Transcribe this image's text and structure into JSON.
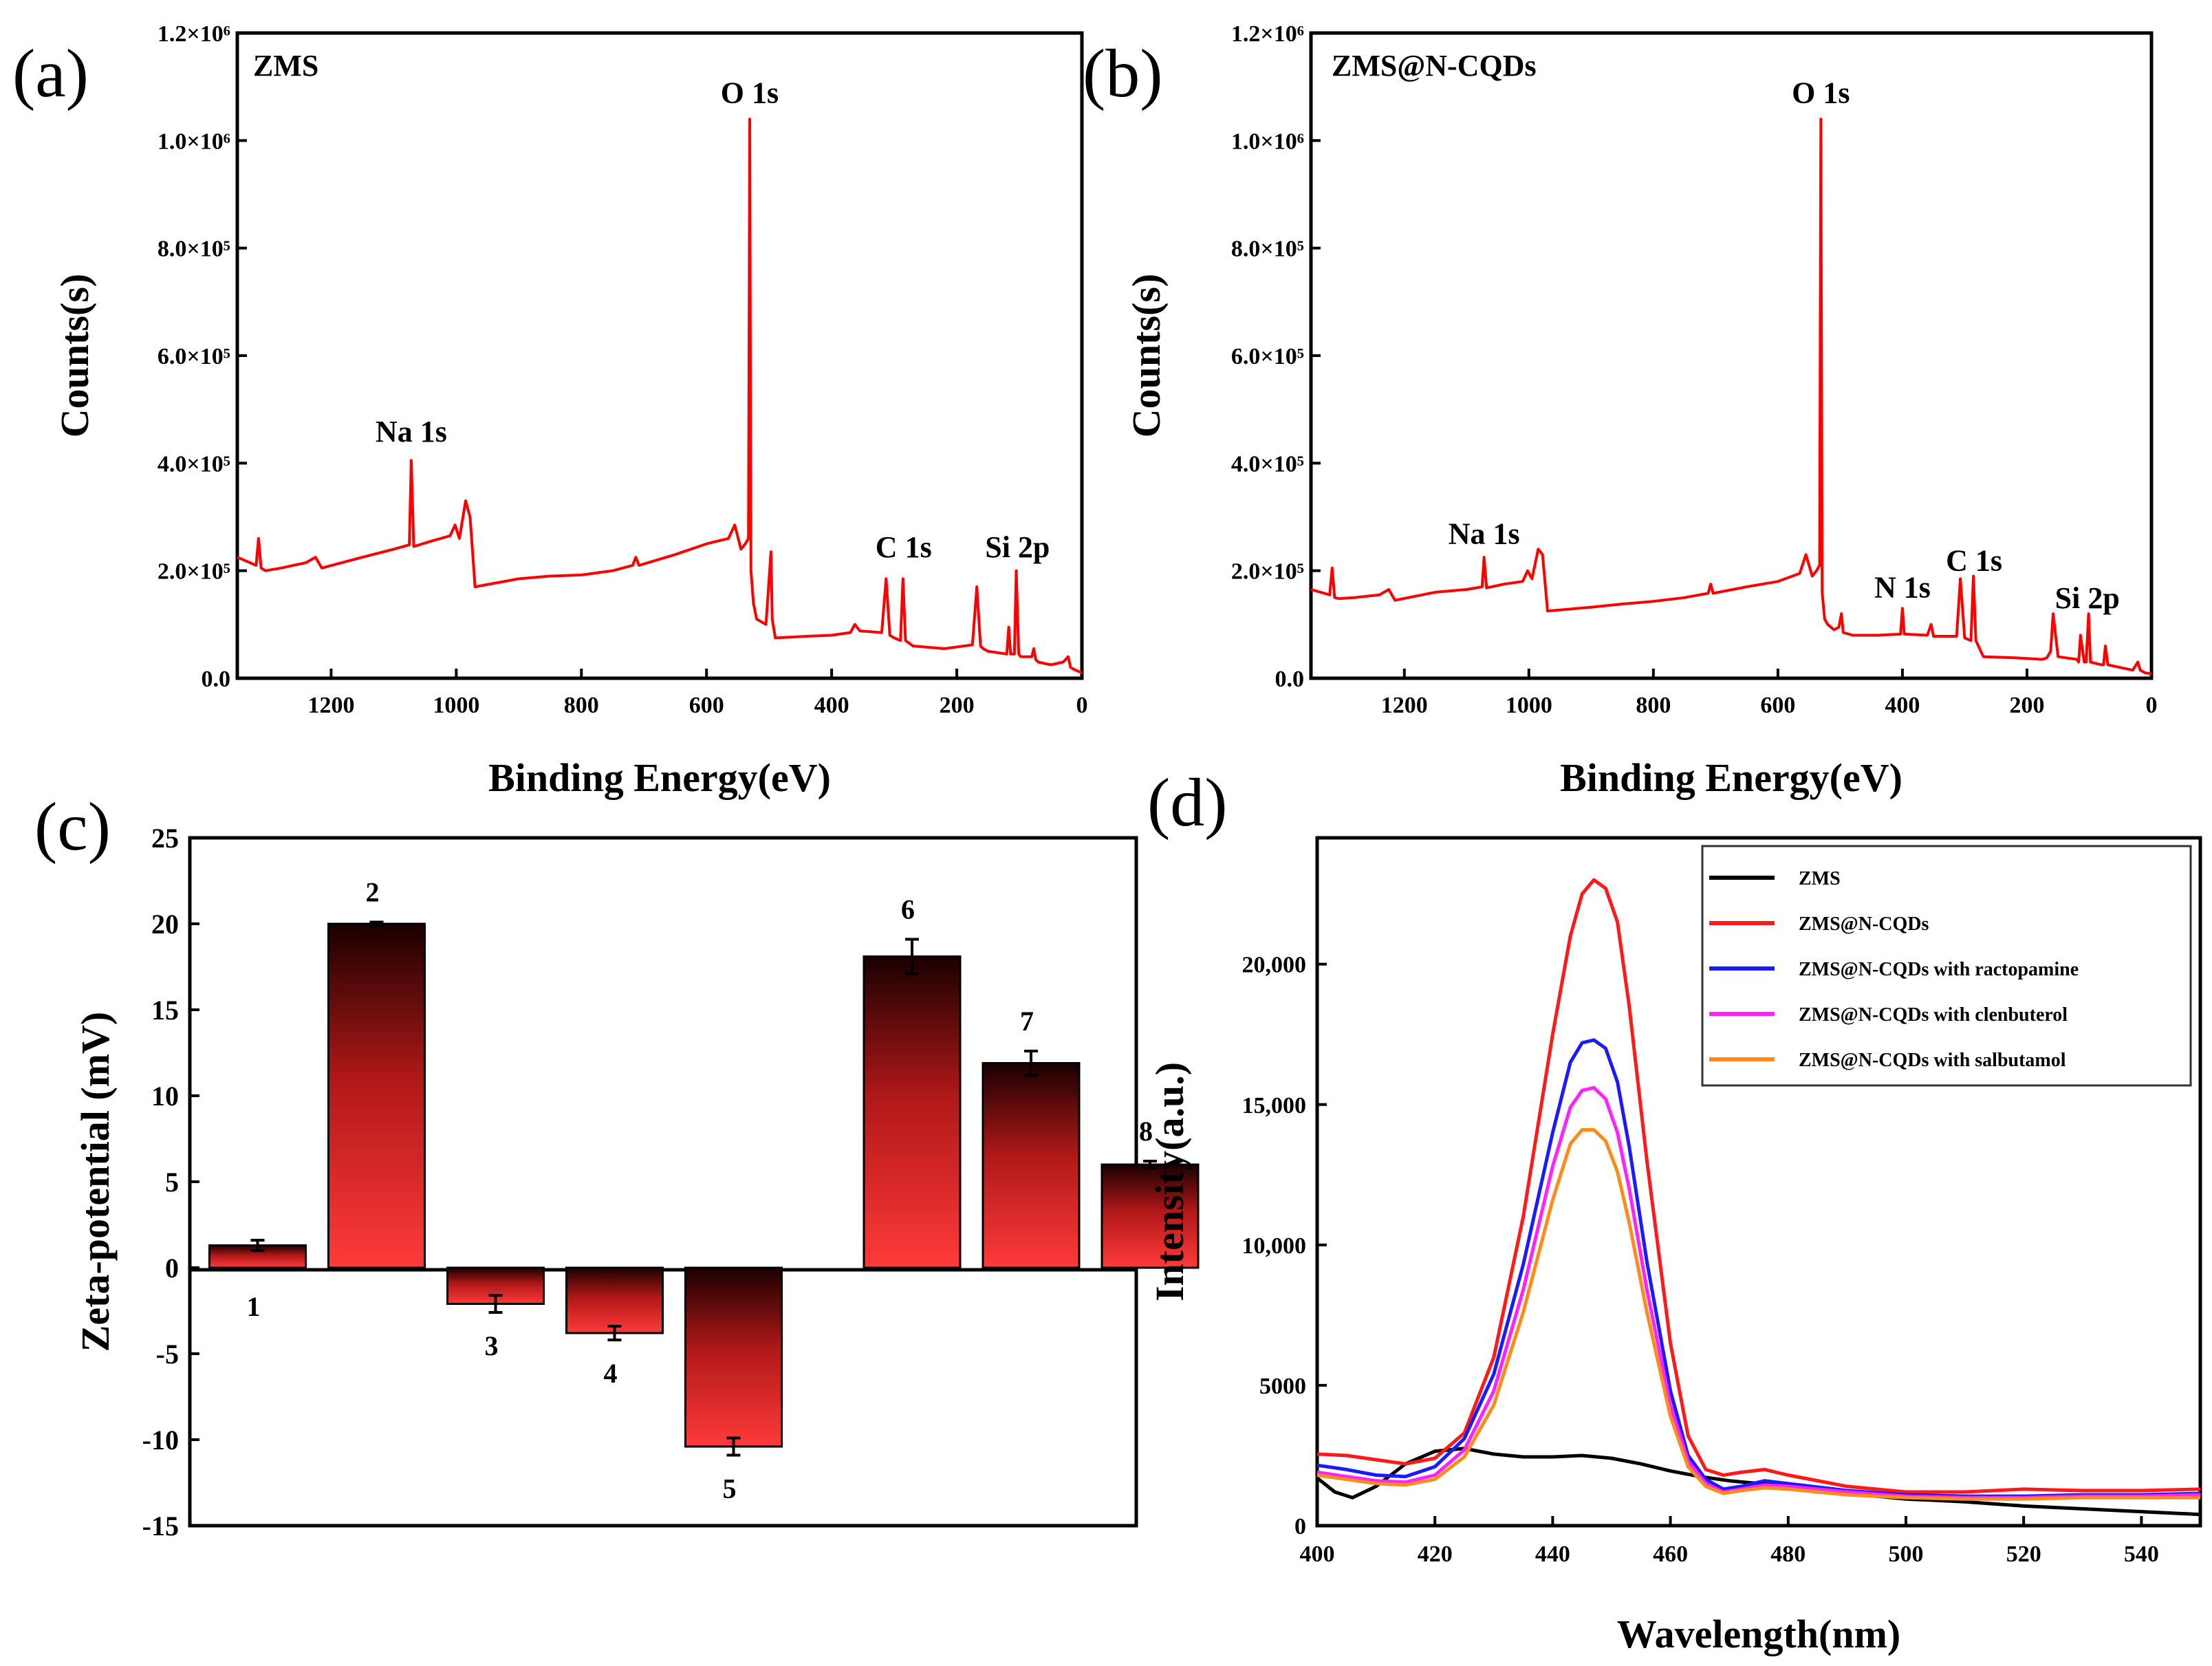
{
  "panels": {
    "a": "(a)",
    "b": "(b)",
    "c": "(c)",
    "d": "(d)"
  },
  "colors": {
    "xps_line": "#ff0000",
    "bar_top": "#1a0000",
    "bar_bottom": "#ff3a3a",
    "zms": "#000000",
    "zms_ncqds": "#ff1a1a",
    "ractopamine": "#1a1aff",
    "clenbuterol": "#ff22ff",
    "salbutamol": "#ff8c1a"
  },
  "chart_data": [
    {
      "id": "a",
      "type": "line",
      "sample_label": "ZMS",
      "xlabel": "Binding Energy(eV)",
      "ylabel": "Counts(s)",
      "xlim": [
        1350,
        0
      ],
      "ylim": [
        0,
        1200000
      ],
      "x_ticks": [
        "1200",
        "1000",
        "800",
        "600",
        "400",
        "200",
        "0"
      ],
      "y_ticks": [
        "0.0",
        "2.0×10⁵",
        "4.0×10⁵",
        "6.0×10⁵",
        "8.0×10⁵",
        "1.0×10⁶",
        "1.2×10⁶"
      ],
      "peak_labels": [
        {
          "text": "Na 1s",
          "x": 1072,
          "y": 430000
        },
        {
          "text": "O 1s",
          "x": 531,
          "y": 1060000
        },
        {
          "text": "C 1s",
          "x": 285,
          "y": 215000
        },
        {
          "text": "Si 2p",
          "x": 103,
          "y": 215000
        }
      ],
      "x": [
        1350,
        1320,
        1316,
        1312,
        1305,
        1280,
        1240,
        1225,
        1215,
        1150,
        1100,
        1075,
        1072,
        1068,
        1040,
        1010,
        1002,
        995,
        985,
        978,
        970,
        900,
        850,
        800,
        750,
        718,
        713,
        708,
        650,
        600,
        565,
        555,
        545,
        538,
        533,
        531,
        529,
        525,
        520,
        505,
        497,
        495,
        490,
        440,
        400,
        370,
        363,
        355,
        320,
        313,
        307,
        300,
        290,
        286,
        282,
        270,
        220,
        175,
        168,
        162,
        158,
        150,
        120,
        117,
        114,
        108,
        105,
        101,
        98,
        80,
        77,
        74,
        70,
        50,
        30,
        22,
        18,
        10,
        0
      ],
      "y": [
        225000,
        210000,
        260000,
        205000,
        200000,
        205000,
        215000,
        225000,
        205000,
        225000,
        240000,
        248000,
        405000,
        245000,
        255000,
        265000,
        285000,
        260000,
        330000,
        300000,
        170000,
        185000,
        190000,
        192000,
        200000,
        210000,
        225000,
        210000,
        230000,
        250000,
        260000,
        285000,
        240000,
        250000,
        260000,
        1040000,
        200000,
        140000,
        110000,
        100000,
        235000,
        110000,
        75000,
        78000,
        80000,
        85000,
        100000,
        88000,
        85000,
        185000,
        80000,
        75000,
        70000,
        185000,
        70000,
        60000,
        55000,
        62000,
        170000,
        60000,
        55000,
        50000,
        45000,
        95000,
        45000,
        45000,
        200000,
        45000,
        40000,
        40000,
        55000,
        35000,
        30000,
        25000,
        30000,
        40000,
        20000,
        15000,
        10000
      ]
    },
    {
      "id": "b",
      "type": "line",
      "sample_label": "ZMS@N-CQDs",
      "xlabel": "Binding Energy(eV)",
      "ylabel": "Counts(s)",
      "xlim": [
        1350,
        0
      ],
      "ylim": [
        0,
        1200000
      ],
      "x_ticks": [
        "1200",
        "1000",
        "800",
        "600",
        "400",
        "200",
        "0"
      ],
      "y_ticks": [
        "0.0",
        "2.0×10⁵",
        "4.0×10⁵",
        "6.0×10⁵",
        "8.0×10⁵",
        "1.0×10⁶",
        "1.2×10⁶"
      ],
      "peak_labels": [
        {
          "text": "Na 1s",
          "x": 1072,
          "y": 240000
        },
        {
          "text": "O 1s",
          "x": 531,
          "y": 1060000
        },
        {
          "text": "N 1s",
          "x": 400,
          "y": 140000
        },
        {
          "text": "C 1s",
          "x": 285,
          "y": 190000
        },
        {
          "text": "Si 2p",
          "x": 103,
          "y": 120000
        }
      ],
      "x": [
        1350,
        1320,
        1316,
        1312,
        1305,
        1280,
        1240,
        1225,
        1215,
        1150,
        1100,
        1075,
        1072,
        1068,
        1040,
        1010,
        1002,
        995,
        985,
        978,
        970,
        900,
        850,
        800,
        750,
        712,
        708,
        704,
        650,
        600,
        565,
        555,
        545,
        538,
        533,
        531,
        529,
        525,
        520,
        510,
        502,
        498,
        495,
        480,
        440,
        403,
        400,
        397,
        360,
        354,
        350,
        313,
        307,
        300,
        290,
        286,
        282,
        270,
        220,
        175,
        168,
        162,
        158,
        150,
        120,
        117,
        114,
        108,
        105,
        101,
        98,
        80,
        77,
        74,
        70,
        50,
        30,
        22,
        18,
        10,
        0
      ],
      "y": [
        165000,
        155000,
        205000,
        150000,
        148000,
        150000,
        155000,
        165000,
        145000,
        160000,
        165000,
        170000,
        225000,
        168000,
        175000,
        180000,
        200000,
        185000,
        240000,
        230000,
        125000,
        132000,
        138000,
        143000,
        150000,
        158000,
        175000,
        158000,
        170000,
        180000,
        195000,
        230000,
        190000,
        200000,
        210000,
        1040000,
        160000,
        110000,
        100000,
        90000,
        95000,
        120000,
        85000,
        80000,
        80000,
        82000,
        130000,
        82000,
        80000,
        100000,
        78000,
        78000,
        185000,
        75000,
        70000,
        190000,
        70000,
        40000,
        38000,
        35000,
        38000,
        50000,
        120000,
        40000,
        35000,
        30000,
        80000,
        30000,
        30000,
        120000,
        30000,
        25000,
        25000,
        60000,
        25000,
        20000,
        15000,
        30000,
        15000,
        10000,
        8000
      ]
    },
    {
      "id": "c",
      "type": "bar",
      "ylabel": "Zeta-potential (mV)",
      "ylim": [
        -15,
        25
      ],
      "y_ticks": [
        "-15",
        "-10",
        "-5",
        "0",
        "5",
        "10",
        "15",
        "20",
        "25"
      ],
      "categories": [
        "1",
        "2",
        "3",
        "4",
        "5",
        "6",
        "7",
        "8"
      ],
      "values": [
        1.3,
        20.0,
        -2.1,
        -3.8,
        -10.4,
        18.1,
        11.9,
        6.0
      ],
      "errors": [
        0.3,
        0.1,
        0.5,
        0.4,
        0.5,
        1.0,
        0.7,
        0.2
      ],
      "slots": [
        1,
        2,
        3,
        4,
        5,
        6.5,
        7.5,
        8.5
      ]
    },
    {
      "id": "d",
      "type": "line",
      "xlabel": "Wavelength(nm)",
      "ylabel": "Intensity(a.u.)",
      "xlim": [
        400,
        550
      ],
      "ylim": [
        0,
        24500
      ],
      "x_ticks": [
        "400",
        "420",
        "440",
        "460",
        "480",
        "500",
        "520",
        "540"
      ],
      "y_ticks": [
        "0",
        "5000",
        "10,000",
        "15,000",
        "20,000"
      ],
      "series": [
        {
          "name": "ZMS",
          "x": [
            400,
            403,
            406,
            410,
            415,
            420,
            425,
            430,
            435,
            440,
            445,
            450,
            455,
            460,
            465,
            470,
            475,
            480,
            490,
            500,
            510,
            520,
            530,
            540,
            550
          ],
          "y": [
            1700,
            1200,
            1000,
            1400,
            2200,
            2650,
            2750,
            2550,
            2450,
            2450,
            2500,
            2400,
            2200,
            1950,
            1750,
            1600,
            1500,
            1400,
            1150,
            950,
            850,
            700,
            600,
            500,
            400
          ]
        },
        {
          "name": "ZMS@N-CQDs",
          "x": [
            400,
            405,
            410,
            415,
            420,
            425,
            430,
            435,
            440,
            443,
            445,
            447,
            449,
            451,
            453,
            456,
            460,
            463,
            466,
            469,
            472,
            476,
            480,
            490,
            500,
            510,
            520,
            530,
            540,
            550
          ],
          "y": [
            2550,
            2500,
            2350,
            2200,
            2400,
            3300,
            6000,
            11000,
            17500,
            21000,
            22500,
            23000,
            22700,
            21500,
            18500,
            13000,
            6500,
            3200,
            2000,
            1800,
            1900,
            2000,
            1800,
            1400,
            1200,
            1200,
            1300,
            1250,
            1250,
            1300
          ]
        },
        {
          "name": "ZMS@N-CQDs with ractopamine",
          "x": [
            400,
            405,
            410,
            415,
            420,
            425,
            430,
            435,
            440,
            443,
            445,
            447,
            449,
            451,
            453,
            456,
            460,
            463,
            466,
            469,
            472,
            476,
            480,
            490,
            500,
            510,
            520,
            530,
            540,
            550
          ],
          "y": [
            2150,
            2000,
            1800,
            1750,
            2100,
            3100,
            5400,
            9300,
            14000,
            16500,
            17200,
            17300,
            17000,
            15800,
            13500,
            9400,
            4800,
            2500,
            1650,
            1300,
            1400,
            1600,
            1500,
            1250,
            1100,
            1050,
            1050,
            1100,
            1100,
            1150
          ]
        },
        {
          "name": "ZMS@N-CQDs with clenbuterol",
          "x": [
            400,
            405,
            410,
            415,
            420,
            425,
            430,
            435,
            440,
            443,
            445,
            447,
            449,
            451,
            453,
            456,
            460,
            463,
            466,
            469,
            472,
            476,
            480,
            490,
            500,
            510,
            520,
            530,
            540,
            550
          ],
          "y": [
            1900,
            1750,
            1600,
            1550,
            1800,
            2700,
            4800,
            8400,
            12800,
            14900,
            15500,
            15600,
            15200,
            14000,
            12000,
            8400,
            4300,
            2300,
            1500,
            1200,
            1300,
            1450,
            1400,
            1200,
            1050,
            1000,
            1000,
            1050,
            1050,
            1100
          ]
        },
        {
          "name": "ZMS@N-CQDs with salbutamol",
          "x": [
            400,
            405,
            410,
            415,
            420,
            425,
            430,
            435,
            440,
            443,
            445,
            447,
            449,
            451,
            453,
            456,
            460,
            463,
            466,
            469,
            472,
            476,
            480,
            490,
            500,
            510,
            520,
            530,
            540,
            550
          ],
          "y": [
            1800,
            1650,
            1500,
            1450,
            1650,
            2450,
            4300,
            7600,
            11600,
            13600,
            14100,
            14100,
            13700,
            12600,
            10800,
            7600,
            3900,
            2100,
            1400,
            1150,
            1250,
            1350,
            1300,
            1100,
            1000,
            950,
            950,
            1000,
            1000,
            1000
          ]
        }
      ]
    }
  ]
}
